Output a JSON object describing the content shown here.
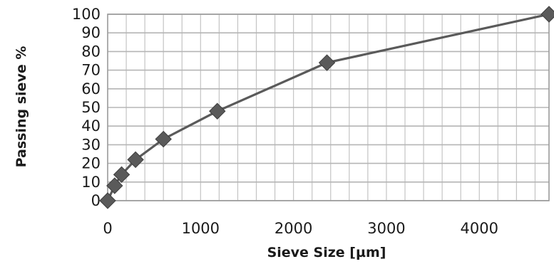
{
  "chart_data": {
    "type": "line",
    "title": "",
    "xlabel": "Sieve Size [µm]",
    "ylabel": "Passing sieve %",
    "xlim": [
      0,
      4750
    ],
    "ylim": [
      0,
      100
    ],
    "x_ticks": [
      0,
      1000,
      2000,
      3000,
      4000
    ],
    "x_tick_labels": [
      "0",
      "1000",
      "2000",
      "3000",
      "4000"
    ],
    "y_ticks": [
      0,
      10,
      20,
      30,
      40,
      50,
      60,
      70,
      80,
      90,
      100
    ],
    "y_tick_labels": [
      "0",
      "10",
      "20",
      "30",
      "40",
      "50",
      "60",
      "70",
      "80",
      "90",
      "100"
    ],
    "x_minor_step": 200,
    "grid": true,
    "legend": "none",
    "series": [
      {
        "x": [
          0,
          75,
          150,
          300,
          600,
          1180,
          2360,
          4750
        ],
        "y": [
          0,
          8,
          14,
          22,
          33,
          48,
          74,
          100
        ],
        "marker": "diamond",
        "color": "#5a5a5a"
      }
    ]
  }
}
